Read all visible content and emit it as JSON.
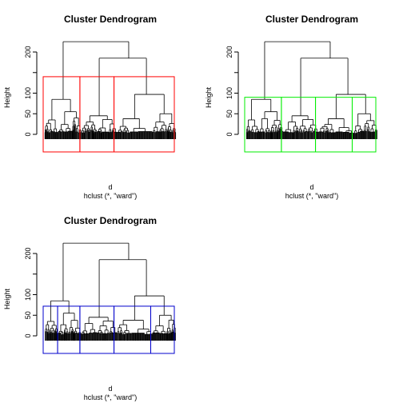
{
  "chart_data": [
    {
      "type": "dendrogram",
      "title": "Cluster Dendrogram",
      "ylabel": "Height",
      "xlabel": "d",
      "sublabel": "hclust (*, \"ward\")",
      "yticks": [
        0,
        50,
        100,
        200
      ],
      "ylim": [
        0,
        235
      ],
      "rect_k": 3,
      "rect_color": "#ff0000",
      "rect_height": 140,
      "tree": {
        "root_height": 225,
        "left_height": 85,
        "right_height": 185,
        "right_left_height": 45,
        "right_right_height": 97
      }
    },
    {
      "type": "dendrogram",
      "title": "Cluster Dendrogram",
      "ylabel": "Height",
      "xlabel": "d",
      "sublabel": "hclust (*, \"ward\")",
      "yticks": [
        0,
        50,
        100,
        200
      ],
      "ylim": [
        0,
        235
      ],
      "rect_k": 4,
      "rect_color": "#00ee00",
      "rect_height": 90,
      "tree": {
        "root_height": 225,
        "left_height": 85,
        "right_height": 185,
        "right_left_height": 45,
        "right_right_height": 97
      }
    },
    {
      "type": "dendrogram",
      "title": "Cluster Dendrogram",
      "ylabel": "Height",
      "xlabel": "d",
      "sublabel": "hclust (*, \"ward\")",
      "yticks": [
        0,
        50,
        100,
        200
      ],
      "ylim": [
        0,
        235
      ],
      "rect_k": 5,
      "rect_color": "#0000cc",
      "rect_height": 72,
      "tree": {
        "root_height": 225,
        "left_height": 85,
        "right_height": 185,
        "right_left_height": 45,
        "right_right_height": 97
      }
    }
  ]
}
